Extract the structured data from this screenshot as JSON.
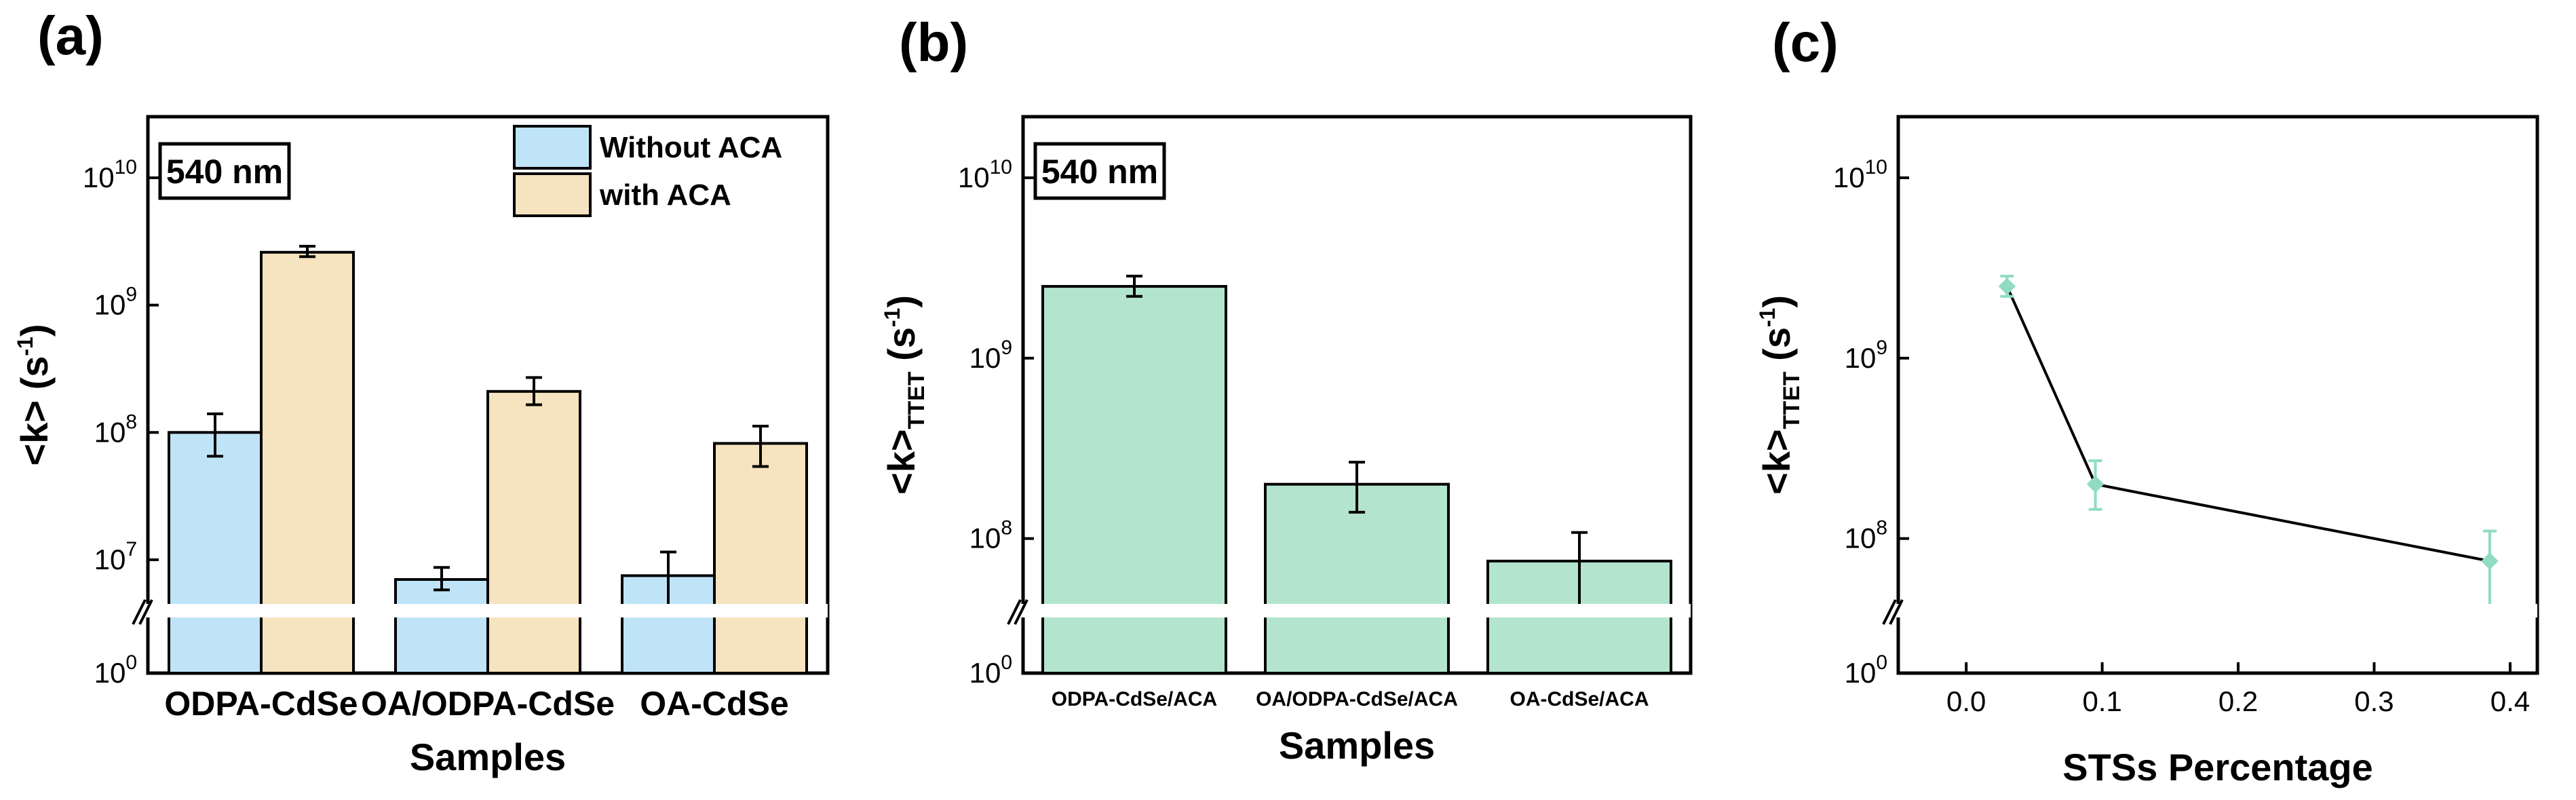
{
  "chart_data": [
    {
      "panel_label": "(a)",
      "type": "bar",
      "yscale": "log-broken",
      "annotation": "540 nm",
      "xlabel": "Samples",
      "ylabel": "<k> (s⁻¹)",
      "categories": [
        "ODPA-CdSe",
        "OA/ODPA-CdSe",
        "OA-CdSe"
      ],
      "series": [
        {
          "name": "Without  ACA",
          "color": "#bfe4f8",
          "values": [
            100000000.0,
            7000000.0,
            7500000.0
          ],
          "err_low": [
            65000000.0,
            5800000.0,
            3800000.0
          ],
          "err_high": [
            140000000.0,
            8700000.0,
            11500000.0
          ]
        },
        {
          "name": "with ACA",
          "color": "#f6e3bf",
          "values": [
            2600000000.0,
            210000000.0,
            82000000.0
          ],
          "err_low": [
            2400000000.0,
            165000000.0,
            54000000.0
          ],
          "err_high": [
            2900000000.0,
            270000000.0,
            112000000.0
          ]
        }
      ],
      "yticks": [
        "10^0",
        "10^7",
        "10^8",
        "10^9",
        "10^10"
      ],
      "legend_position": "top-right"
    },
    {
      "panel_label": "(b)",
      "type": "bar",
      "yscale": "log-broken",
      "annotation": "540 nm",
      "xlabel": "Samples",
      "ylabel": "<k>TTET (s⁻¹)",
      "categories": [
        "ODPA-CdSe/ACA",
        "OA/ODPA-CdSe/ACA",
        "OA-CdSe/ACA"
      ],
      "series": [
        {
          "name": "with ACA",
          "color": "#b3e4cd",
          "values": [
            2500000000.0,
            200000000.0,
            75000000.0
          ],
          "err_low": [
            2200000000.0,
            140000000.0,
            42000000.0
          ],
          "err_high": [
            2850000000.0,
            265000000.0,
            108000000.0
          ]
        }
      ],
      "yticks": [
        "10^0",
        "10^8",
        "10^9",
        "10^10"
      ]
    },
    {
      "panel_label": "(c)",
      "type": "line",
      "yscale": "log-broken",
      "xlabel": "STSs Percentage",
      "ylabel": "<k>TTET (s⁻¹)",
      "marker_color": "#8fdcc0",
      "x": [
        0.03,
        0.095,
        0.385
      ],
      "y": [
        2500000000.0,
        200000000.0,
        75000000.0
      ],
      "err_low": [
        2200000000.0,
        145000000.0,
        42000000.0
      ],
      "err_high": [
        2850000000.0,
        270000000.0,
        110000000.0
      ],
      "xlim": [
        -0.05,
        0.42
      ],
      "xticks": [
        "0.0",
        "0.1",
        "0.2",
        "0.3",
        "0.4"
      ],
      "yticks": [
        "10^0",
        "10^8",
        "10^9",
        "10^10"
      ]
    }
  ]
}
